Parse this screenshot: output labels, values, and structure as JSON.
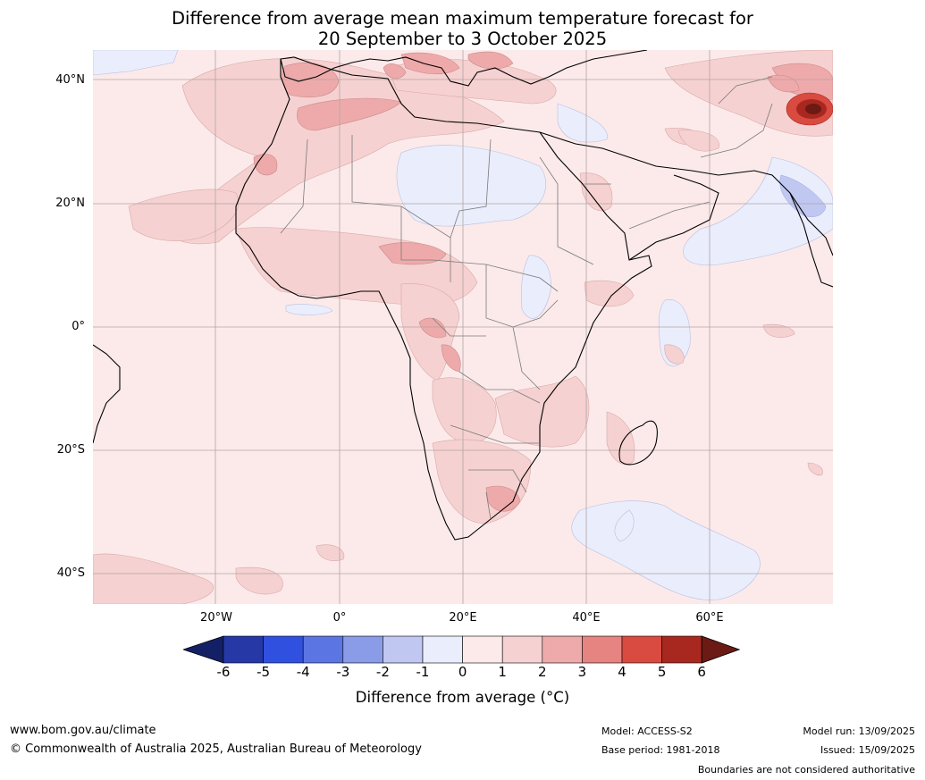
{
  "title": {
    "line1": "Difference from average mean maximum temperature forecast for",
    "line2": "20 September to 3 October 2025"
  },
  "lat_labels": [
    "40°N",
    "20°N",
    "0°",
    "20°S",
    "40°S"
  ],
  "lon_labels": [
    "20°W",
    "0°",
    "20°E",
    "40°E",
    "60°E"
  ],
  "colorbar": {
    "ticks": [
      "-6",
      "-5",
      "-4",
      "-3",
      "-2",
      "-1",
      "0",
      "1",
      "2",
      "3",
      "4",
      "5",
      "6"
    ],
    "under_color": "#142066",
    "over_color": "#6b1a14",
    "colors": [
      "#2638a6",
      "#3050e0",
      "#5b76e2",
      "#8a9ce8",
      "#c0c8f2",
      "#eaedfc",
      "#fceaea",
      "#f6d1d1",
      "#eeaaaa",
      "#e58481",
      "#d94a40",
      "#a8281f"
    ],
    "label": "Difference from average (°C)"
  },
  "footer": {
    "website": "www.bom.gov.au/climate",
    "copyright": "© Commonwealth of Australia 2025, Australian Bureau of Meteorology",
    "model": "Model: ACCESS-S2",
    "base_period": "Base period: 1981-2018",
    "model_run": "Model run: 13/09/2025",
    "issued": "Issued: 15/09/2025",
    "disclaimer": "Boundaries are not considered authoritative"
  }
}
